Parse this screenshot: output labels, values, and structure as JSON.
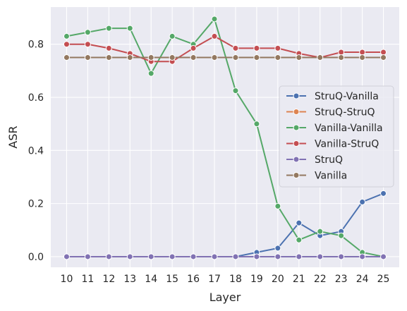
{
  "chart_data": {
    "type": "line",
    "title": "",
    "xlabel": "Layer",
    "ylabel": "ASR",
    "x": [
      10,
      11,
      12,
      13,
      14,
      15,
      16,
      17,
      18,
      19,
      20,
      21,
      22,
      23,
      24,
      25
    ],
    "y_ticks": [
      "0.0",
      "0.2",
      "0.4",
      "0.6",
      "0.8"
    ],
    "ylim": [
      -0.04,
      0.94
    ],
    "grid": true,
    "legend_position": "center-right",
    "background": "#EAEAF2",
    "series": [
      {
        "name": "StruQ-Vanilla",
        "color": "#4C72B0",
        "values": [
          0.0,
          0.0,
          0.0,
          0.0,
          0.0,
          0.0,
          0.0,
          0.0,
          0.0,
          0.016,
          0.032,
          0.127,
          0.079,
          0.095,
          0.206,
          0.238
        ]
      },
      {
        "name": "StruQ-StruQ",
        "color": "#DD8452",
        "values": [
          0.0,
          0.0,
          0.0,
          0.0,
          0.0,
          0.0,
          0.0,
          0.0,
          0.0,
          0.0,
          0.0,
          0.0,
          0.0,
          0.0,
          0.0,
          0.0
        ]
      },
      {
        "name": "Vanilla-Vanilla",
        "color": "#55A868",
        "values": [
          0.83,
          0.845,
          0.86,
          0.86,
          0.69,
          0.83,
          0.8,
          0.895,
          0.625,
          0.5,
          0.19,
          0.063,
          0.095,
          0.079,
          0.016,
          0.0
        ]
      },
      {
        "name": "Vanilla-StruQ",
        "color": "#C44E52",
        "values": [
          0.8,
          0.8,
          0.785,
          0.765,
          0.735,
          0.735,
          0.785,
          0.83,
          0.785,
          0.785,
          0.785,
          0.765,
          0.75,
          0.77,
          0.77,
          0.77
        ]
      },
      {
        "name": "StruQ",
        "color": "#8172B3",
        "values": [
          0.0,
          0.0,
          0.0,
          0.0,
          0.0,
          0.0,
          0.0,
          0.0,
          0.0,
          0.0,
          0.0,
          0.0,
          0.0,
          0.0,
          0.0,
          0.0
        ]
      },
      {
        "name": "Vanilla",
        "color": "#937860",
        "values": [
          0.75,
          0.75,
          0.75,
          0.75,
          0.75,
          0.75,
          0.75,
          0.75,
          0.75,
          0.75,
          0.75,
          0.75,
          0.75,
          0.75,
          0.75,
          0.75
        ]
      }
    ]
  }
}
